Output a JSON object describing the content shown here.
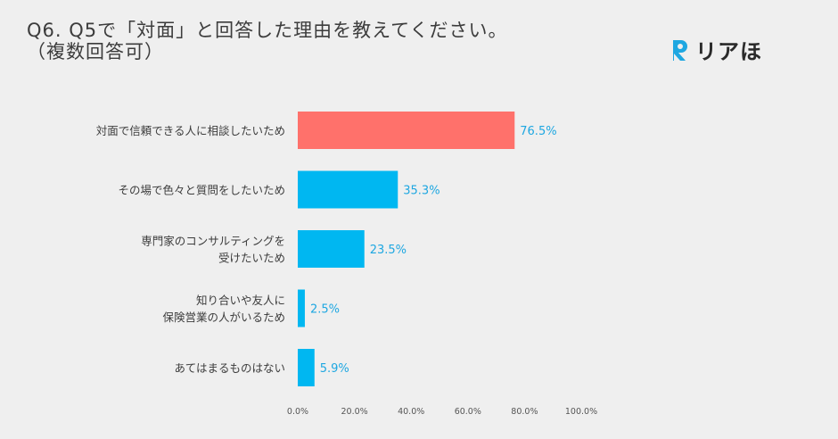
{
  "title": "Q6. Q5で「対面」と回答した理由を教えてください。\n（複数回答可）",
  "logo": {
    "text": "リアほ",
    "icon": "r-logo-icon",
    "color": "#1ea7e1"
  },
  "colors": {
    "highlight": "#ff716b",
    "bar": "#00b7f1",
    "value_text": "#1ea7e1"
  },
  "chart_data": {
    "type": "bar",
    "orientation": "horizontal",
    "categories": [
      [
        "対面で信頼できる人に相談したいため"
      ],
      [
        "その場で色々と質問をしたいため"
      ],
      [
        "専門家のコンサルティングを",
        "受けたいため"
      ],
      [
        "知り合いや友人に",
        "保険営業の人がいるため"
      ],
      [
        "あてはまるものはない"
      ]
    ],
    "values": [
      76.5,
      35.3,
      23.5,
      2.5,
      5.9
    ],
    "value_labels": [
      "76.5%",
      "35.3%",
      "23.5%",
      "2.5%",
      "5.9%"
    ],
    "highlight_index": 0,
    "xlim": [
      0,
      100
    ],
    "xticks": [
      "0.0%",
      "20.0%",
      "40.0%",
      "60.0%",
      "80.0%",
      "100.0%"
    ],
    "grid": false,
    "legend": "none"
  }
}
